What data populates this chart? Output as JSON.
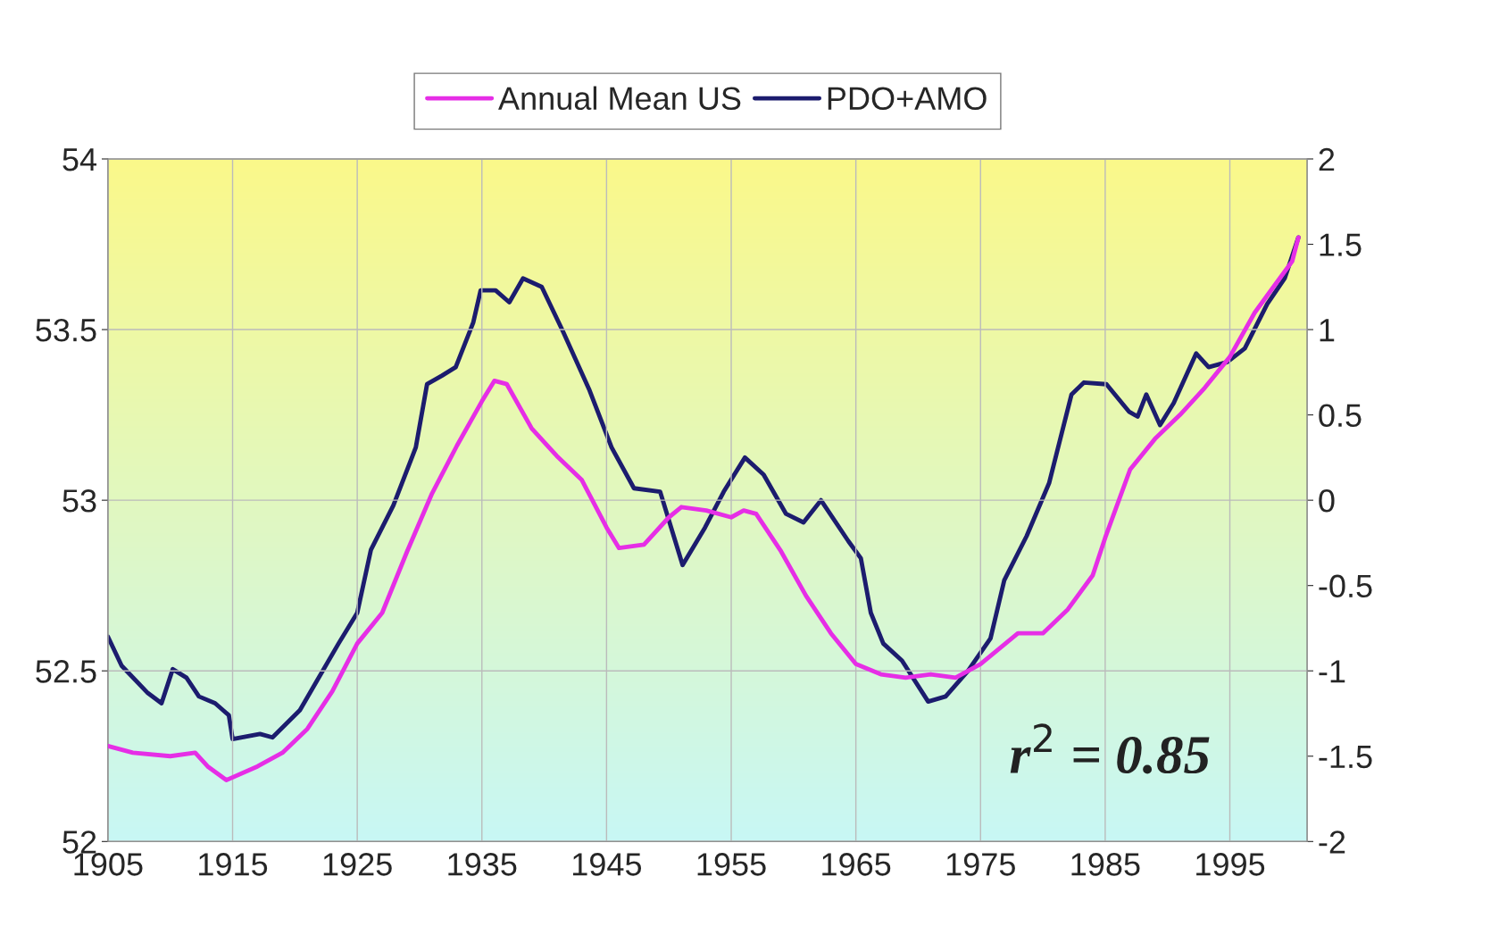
{
  "chart_data": {
    "type": "line",
    "legend": "top",
    "grid": true,
    "xlim": [
      1905,
      2001.2
    ],
    "xticks": [
      1905,
      1915,
      1925,
      1935,
      1945,
      1955,
      1965,
      1975,
      1985,
      1995
    ],
    "ylim": [
      52,
      54
    ],
    "yticks": [
      52,
      52.5,
      53,
      53.5,
      54
    ],
    "y2lim": [
      -2,
      2
    ],
    "y2ticks": [
      -2,
      -1.5,
      -1,
      -0.5,
      0,
      0.5,
      1,
      1.5,
      2
    ],
    "annotations": [
      "r$^{2}$ = 0.85"
    ],
    "series": [
      {
        "name": "Annual Mean US",
        "color": "#e62ee6",
        "x": [
          1905,
          1907,
          1910,
          1912,
          1913,
          1914.5,
          1917,
          1919,
          1921,
          1923,
          1925,
          1927,
          1929,
          1931,
          1933,
          1935,
          1936,
          1937,
          1939,
          1941,
          1943,
          1945,
          1946,
          1948,
          1950,
          1951,
          1953,
          1955,
          1956,
          1957,
          1959,
          1961,
          1963,
          1965,
          1967,
          1969,
          1971,
          1973,
          1975,
          1977,
          1978,
          1980,
          1982,
          1984,
          1985,
          1987,
          1989,
          1991,
          1993,
          1995,
          1997,
          1999,
          2000,
          2000.5
        ],
        "values": [
          52.28,
          52.26,
          52.25,
          52.26,
          52.22,
          52.18,
          52.22,
          52.26,
          52.33,
          52.44,
          52.58,
          52.67,
          52.85,
          53.02,
          53.16,
          53.29,
          53.35,
          53.34,
          53.21,
          53.13,
          53.06,
          52.92,
          52.86,
          52.87,
          52.95,
          52.98,
          52.97,
          52.95,
          52.97,
          52.96,
          52.85,
          52.72,
          52.61,
          52.52,
          52.49,
          52.48,
          52.49,
          52.48,
          52.52,
          52.58,
          52.61,
          52.61,
          52.68,
          52.78,
          52.89,
          53.09,
          53.18,
          53.25,
          53.33,
          53.42,
          53.55,
          53.65,
          53.7,
          53.77
        ]
      },
      {
        "name": "PDO+AMO",
        "color": "#1c1c6e",
        "axis": "y2",
        "x": [
          1905,
          1906.1,
          1908.2,
          1909.3,
          1910.2,
          1911.3,
          1912.3,
          1913.6,
          1914.7,
          1915,
          1917.2,
          1918.2,
          1920.4,
          1923.5,
          1925,
          1926.1,
          1927.9,
          1929.7,
          1930.6,
          1931.8,
          1932.9,
          1934.3,
          1934.9,
          1936.1,
          1937.2,
          1938.3,
          1939.8,
          1941.5,
          1943.6,
          1945.4,
          1947.2,
          1949.3,
          1951.1,
          1952.9,
          1954.4,
          1956.1,
          1957.6,
          1959.4,
          1960.8,
          1962.2,
          1964.4,
          1965.4,
          1966.2,
          1967.2,
          1968.7,
          1970.8,
          1972.2,
          1974,
          1975.8,
          1976.9,
          1978.7,
          1980.5,
          1982.3,
          1983.3,
          1985.1,
          1986.9,
          1987.6,
          1988.3,
          1989.4,
          1990.5,
          1992.3,
          1993.3,
          1994.8,
          1996.2,
          1998,
          1999.4,
          2000.5
        ],
        "values": [
          -0.8,
          -0.97,
          -1.13,
          -1.19,
          -0.99,
          -1.04,
          -1.15,
          -1.19,
          -1.26,
          -1.4,
          -1.37,
          -1.39,
          -1.23,
          -0.84,
          -0.66,
          -0.29,
          -0.03,
          0.31,
          0.68,
          0.73,
          0.78,
          1.04,
          1.23,
          1.23,
          1.16,
          1.3,
          1.25,
          0.99,
          0.65,
          0.31,
          0.07,
          0.05,
          -0.38,
          -0.16,
          0.05,
          0.25,
          0.15,
          -0.08,
          -0.13,
          0,
          -0.24,
          -0.34,
          -0.66,
          -0.84,
          -0.94,
          -1.18,
          -1.15,
          -1,
          -0.81,
          -0.47,
          -0.21,
          0.1,
          0.62,
          0.69,
          0.68,
          0.52,
          0.49,
          0.62,
          0.44,
          0.57,
          0.86,
          0.78,
          0.81,
          0.89,
          1.15,
          1.3,
          1.54
        ]
      }
    ]
  }
}
